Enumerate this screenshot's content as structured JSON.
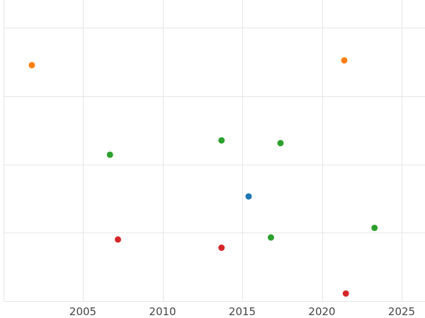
{
  "chart_data": {
    "type": "scatter",
    "title": "",
    "xlabel": "",
    "ylabel": "",
    "xlim": [
      2000,
      2026.5
    ],
    "ylim": [
      0,
      4.0
    ],
    "x_ticks": [
      2005,
      2010,
      2015,
      2020,
      2025
    ],
    "x_tick_labels": [
      "2005",
      "2010",
      "2015",
      "2020",
      "2025"
    ],
    "y_gridlines": [
      0,
      1,
      2,
      3,
      4
    ],
    "y_tick_labels_visible": false,
    "grid": true,
    "legend": "none",
    "colors": {
      "blue": "#1f77b4",
      "orange": "#ff7f0e",
      "green": "#2ca02c",
      "red": "#d62728"
    },
    "series": [
      {
        "color": "#1f77b4",
        "points": [
          {
            "x": 2015.4,
            "y": 1.53
          }
        ]
      },
      {
        "color": "#ff7f0e",
        "points": [
          {
            "x": 2001.8,
            "y": 3.45
          },
          {
            "x": 2021.4,
            "y": 3.52
          }
        ]
      },
      {
        "color": "#2ca02c",
        "points": [
          {
            "x": 2006.7,
            "y": 2.14
          },
          {
            "x": 2013.7,
            "y": 2.35
          },
          {
            "x": 2017.4,
            "y": 2.31
          },
          {
            "x": 2016.8,
            "y": 0.93
          },
          {
            "x": 2023.3,
            "y": 1.07
          }
        ]
      },
      {
        "color": "#d62728",
        "points": [
          {
            "x": 2007.2,
            "y": 0.9
          },
          {
            "x": 2013.7,
            "y": 0.78
          },
          {
            "x": 2021.5,
            "y": 0.11
          }
        ]
      }
    ]
  }
}
